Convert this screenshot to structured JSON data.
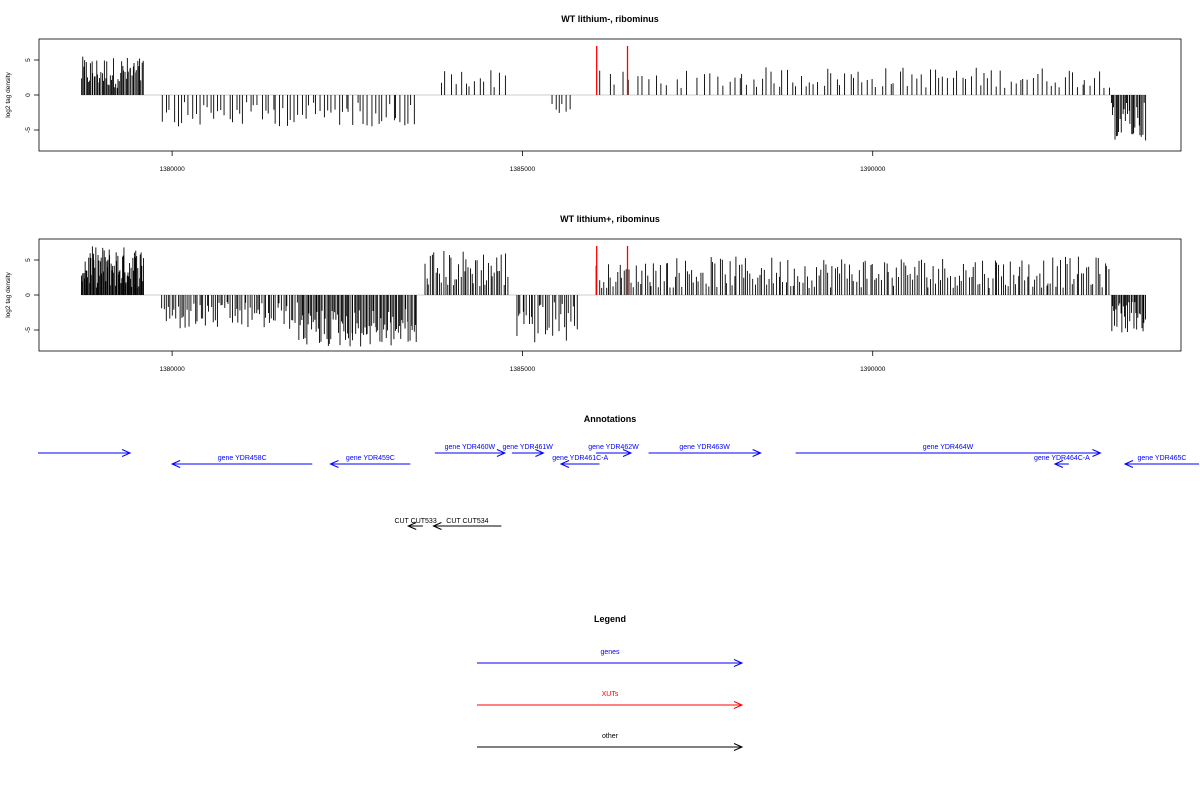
{
  "colors": {
    "genes": "#0000ff",
    "xuts": "#ff0000",
    "other": "#000000",
    "signal": "#000000",
    "highlight": "#ff0000",
    "baseline": "#bebebe"
  },
  "chart_data": [
    {
      "type": "bar",
      "title": "WT lithium-, ribominus",
      "ylabel": "log2 tag density",
      "xlim": [
        1378100,
        1394400
      ],
      "ylim": [
        -8,
        8
      ],
      "xticks": [
        1380000,
        1385000,
        1390000
      ],
      "yticks": [
        5,
        0,
        -5
      ],
      "segments": [
        {
          "from": 1378700,
          "to": 1379600,
          "sign": 1,
          "min": 1.0,
          "max": 5.5,
          "count": 55
        },
        {
          "from": 1379850,
          "to": 1383500,
          "sign": -1,
          "min": 1.0,
          "max": 4.5,
          "count": 70
        },
        {
          "from": 1383800,
          "to": 1384800,
          "sign": 1,
          "min": 1.0,
          "max": 3.8,
          "count": 14
        },
        {
          "from": 1385400,
          "to": 1385700,
          "sign": -1,
          "min": 1.0,
          "max": 3.5,
          "count": 6
        },
        {
          "from": 1386100,
          "to": 1388000,
          "sign": 1,
          "min": 1.0,
          "max": 3.5,
          "count": 20
        },
        {
          "from": 1388000,
          "to": 1393400,
          "sign": 1,
          "min": 1.0,
          "max": 4.0,
          "count": 85
        },
        {
          "from": 1393400,
          "to": 1393900,
          "sign": -1,
          "min": 1.0,
          "max": 6.5,
          "count": 28
        }
      ],
      "highlights": [
        {
          "x": 1386060,
          "value": 7.0
        },
        {
          "x": 1386500,
          "value": 7.0
        }
      ]
    },
    {
      "type": "bar",
      "title": "WT lithium+, ribominus",
      "ylabel": "log2 tag density",
      "xlim": [
        1378100,
        1394400
      ],
      "ylim": [
        -8,
        8
      ],
      "xticks": [
        1380000,
        1385000,
        1390000
      ],
      "yticks": [
        5,
        0,
        -5
      ],
      "segments": [
        {
          "from": 1378700,
          "to": 1379600,
          "sign": 1,
          "min": 1.0,
          "max": 7.0,
          "count": 80
        },
        {
          "from": 1379850,
          "to": 1381800,
          "sign": -1,
          "min": 1.0,
          "max": 5.0,
          "count": 70
        },
        {
          "from": 1381800,
          "to": 1383500,
          "sign": -1,
          "min": 2.0,
          "max": 7.5,
          "count": 90
        },
        {
          "from": 1383600,
          "to": 1384800,
          "sign": 1,
          "min": 1.0,
          "max": 6.5,
          "count": 45
        },
        {
          "from": 1384900,
          "to": 1385800,
          "sign": -1,
          "min": 1.0,
          "max": 7.0,
          "count": 30
        },
        {
          "from": 1386050,
          "to": 1386700,
          "sign": 1,
          "min": 1.0,
          "max": 4.5,
          "count": 20
        },
        {
          "from": 1386700,
          "to": 1393400,
          "sign": 1,
          "min": 1.0,
          "max": 5.5,
          "count": 200
        },
        {
          "from": 1393400,
          "to": 1393900,
          "sign": -1,
          "min": 1.0,
          "max": 5.5,
          "count": 30
        }
      ],
      "highlights": [
        {
          "x": 1386060,
          "value": 7.0
        },
        {
          "x": 1386500,
          "value": 7.0
        }
      ]
    }
  ],
  "annotations": {
    "title": "Annotations",
    "genes": [
      {
        "label": "",
        "start": 1377700,
        "end": 1379400,
        "strand": "+",
        "row": 0
      },
      {
        "label": "gene YDR458C",
        "start": 1380000,
        "end": 1382000,
        "strand": "-",
        "row": 1
      },
      {
        "label": "gene YDR459C",
        "start": 1382260,
        "end": 1383400,
        "strand": "-",
        "row": 1
      },
      {
        "label": "gene YDR460W",
        "start": 1383750,
        "end": 1384750,
        "strand": "+",
        "row": 0
      },
      {
        "label": "gene YDR461W",
        "start": 1384850,
        "end": 1385300,
        "strand": "+",
        "row": 0
      },
      {
        "label": "gene YDR461C-A",
        "start": 1385550,
        "end": 1386100,
        "strand": "-",
        "row": 1
      },
      {
        "label": "gene YDR462W",
        "start": 1386050,
        "end": 1386550,
        "strand": "+",
        "row": 0
      },
      {
        "label": "gene YDR463W",
        "start": 1386800,
        "end": 1388400,
        "strand": "+",
        "row": 0
      },
      {
        "label": "gene YDR464W",
        "start": 1388900,
        "end": 1393250,
        "strand": "+",
        "row": 0
      },
      {
        "label": "gene YDR464C-A",
        "start": 1392600,
        "end": 1392800,
        "strand": "-",
        "row": 1
      },
      {
        "label": "gene YDR465C",
        "start": 1393600,
        "end": 1394700,
        "strand": "-",
        "row": 1
      }
    ],
    "other": [
      {
        "label": "CUT CUT533",
        "start": 1383370,
        "end": 1383580,
        "strand": "-",
        "row": 0
      },
      {
        "label": "CUT CUT534",
        "start": 1383730,
        "end": 1384700,
        "strand": "-",
        "row": 0
      }
    ]
  },
  "legend": {
    "title": "Legend",
    "items": [
      {
        "label": "genes",
        "key": "genes"
      },
      {
        "label": "XUTs",
        "key": "xuts"
      },
      {
        "label": "other",
        "key": "other"
      }
    ]
  }
}
